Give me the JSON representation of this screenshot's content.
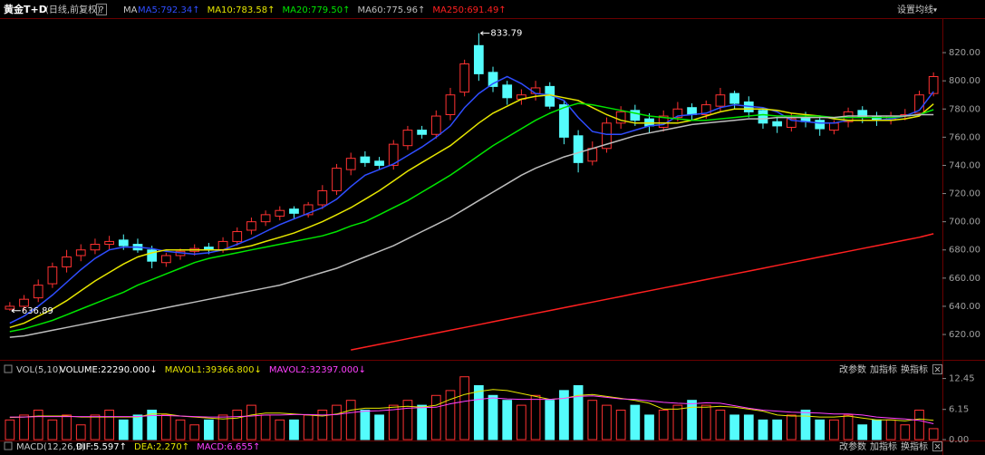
{
  "toolbar": {
    "help": "?",
    "ma_settings": "设置均线"
  },
  "panel_controls": [
    "改参数",
    "加指标",
    "换指标"
  ],
  "chart_data": [
    {
      "type": "candlestick",
      "title": "黄金T+D",
      "subtitle": "(日线,前复权)",
      "indicator_label": "MA",
      "up_color": "#ff3232",
      "down_color": "#54fcfc",
      "open": [
        638,
        640,
        646,
        656,
        668,
        676,
        680,
        684,
        687,
        684,
        680,
        671,
        676,
        679,
        682,
        680,
        686,
        694,
        700,
        704,
        709,
        705,
        712,
        722,
        737,
        746,
        743,
        740,
        754,
        765,
        762,
        776,
        792,
        825,
        806,
        797,
        787,
        791,
        796,
        783,
        761,
        743,
        752,
        770,
        779,
        773,
        767,
        774,
        781,
        776,
        782,
        791,
        785,
        779,
        771,
        767,
        774,
        772,
        765,
        771,
        779,
        775,
        772,
        775,
        777,
        791
      ],
      "high": [
        643,
        648,
        659,
        671,
        680,
        684,
        688,
        690,
        691,
        688,
        683,
        678,
        681,
        684,
        685,
        689,
        696,
        703,
        708,
        711,
        711,
        714,
        726,
        741,
        749,
        750,
        746,
        758,
        768,
        768,
        779,
        795,
        815,
        833.79,
        810,
        800,
        794,
        800,
        799,
        786,
        765,
        757,
        774,
        782,
        783,
        777,
        779,
        785,
        784,
        786,
        795,
        793,
        789,
        781,
        774,
        777,
        778,
        775,
        772,
        781,
        782,
        778,
        778,
        780,
        793,
        806
      ],
      "low": [
        636.89,
        637,
        643,
        653,
        664,
        672,
        677,
        680,
        680,
        678,
        667,
        668,
        673,
        676,
        677,
        678,
        683,
        691,
        697,
        701,
        702,
        703,
        709,
        719,
        733,
        739,
        737,
        737,
        751,
        759,
        759,
        772,
        789,
        800,
        792,
        783,
        783,
        786,
        780,
        755,
        735,
        740,
        749,
        766,
        768,
        763,
        764,
        771,
        772,
        773,
        778,
        780,
        774,
        766,
        763,
        764,
        767,
        761,
        762,
        767,
        770,
        768,
        769,
        772,
        775,
        789
      ],
      "close": [
        640,
        645,
        655,
        668,
        675,
        680,
        684,
        686,
        683,
        680,
        672,
        676,
        679,
        681,
        680,
        686,
        693,
        700,
        705,
        708,
        706,
        712,
        722,
        738,
        745,
        742,
        740,
        755,
        765,
        762,
        775,
        790,
        812,
        805,
        796,
        788,
        790,
        795,
        782,
        760,
        742,
        752,
        770,
        778,
        772,
        768,
        775,
        780,
        776,
        783,
        790,
        784,
        778,
        770,
        768,
        773,
        771,
        766,
        770,
        778,
        774,
        772,
        775,
        776,
        790,
        803
      ],
      "series": [
        {
          "name": "MA5:792.34↑",
          "color": "#2f4dff",
          "values": [
            628,
            633,
            640,
            648,
            657,
            666,
            674,
            680,
            682,
            682,
            681,
            679,
            678,
            677,
            678,
            680,
            684,
            688,
            693,
            698,
            702,
            706,
            710,
            716,
            725,
            733,
            737,
            741,
            747,
            753,
            760,
            768,
            781,
            791,
            798,
            803,
            798,
            791,
            790,
            786,
            774,
            764,
            762,
            762,
            765,
            768,
            769,
            775,
            776,
            777,
            781,
            783,
            782,
            781,
            778,
            772,
            771,
            770,
            770,
            772,
            772,
            772,
            773,
            775,
            779,
            792.34
          ]
        },
        {
          "name": "MA10:783.58↑",
          "color": "#e6e600",
          "values": [
            625,
            628,
            633,
            638,
            644,
            651,
            658,
            664,
            670,
            675,
            678,
            680,
            680,
            680,
            680,
            680,
            681,
            683,
            686,
            689,
            692,
            696,
            700,
            705,
            710,
            716,
            722,
            729,
            736,
            742,
            748,
            754,
            762,
            770,
            777,
            782,
            787,
            789,
            790,
            788,
            786,
            781,
            776,
            772,
            770,
            770,
            770,
            770,
            772,
            775,
            778,
            780,
            780,
            780,
            779,
            777,
            776,
            775,
            773,
            772,
            772,
            772,
            772,
            773,
            775,
            783.58
          ]
        },
        {
          "name": "MA20:779.50↑",
          "color": "#00e600",
          "values": [
            622,
            624,
            627,
            630,
            634,
            638,
            642,
            646,
            650,
            655,
            659,
            663,
            667,
            671,
            674,
            676,
            678,
            680,
            682,
            684,
            686,
            688,
            690,
            693,
            697,
            700,
            705,
            710,
            715,
            721,
            727,
            733,
            740,
            747,
            754,
            760,
            766,
            772,
            777,
            781,
            784,
            783,
            781,
            779,
            777,
            775,
            774,
            773,
            772,
            772,
            773,
            774,
            775,
            776,
            775,
            775,
            775,
            775,
            774,
            774,
            774,
            774,
            774,
            775,
            776,
            779.5
          ]
        },
        {
          "name": "MA60:775.96↑",
          "color": "#bdbdbd",
          "values": [
            618,
            619,
            621,
            623,
            625,
            627,
            629,
            631,
            633,
            635,
            637,
            639,
            641,
            643,
            645,
            647,
            649,
            651,
            653,
            655,
            658,
            661,
            664,
            667,
            671,
            675,
            679,
            683,
            688,
            693,
            698,
            703,
            709,
            715,
            721,
            727,
            733,
            738,
            742,
            746,
            749,
            752,
            755,
            758,
            761,
            763,
            765,
            767,
            769,
            770,
            771,
            772,
            773,
            773,
            774,
            774,
            774,
            774,
            774,
            775,
            775,
            775,
            775,
            775,
            776,
            775.96
          ]
        },
        {
          "name": "MA250:691.49↑",
          "color": "#ff2020",
          "values": [
            null,
            null,
            null,
            null,
            null,
            null,
            null,
            null,
            null,
            null,
            null,
            null,
            null,
            null,
            null,
            null,
            null,
            null,
            null,
            null,
            null,
            null,
            null,
            null,
            609,
            611,
            613,
            615,
            617,
            619,
            621,
            623,
            625,
            627,
            629,
            631,
            633,
            635,
            637,
            639,
            641,
            643,
            645,
            647,
            649,
            651,
            653,
            655,
            657,
            659,
            661,
            663,
            665,
            667,
            669,
            671,
            673,
            675,
            677,
            679,
            681,
            683,
            685,
            687,
            689,
            691.49
          ]
        }
      ],
      "annotations": [
        "833.79",
        "636.89"
      ],
      "ylim": [
        603.3,
        843.2
      ],
      "yticks": [
        {
          "value": 620,
          "label": "620.00"
        },
        {
          "value": 640,
          "label": "640.00"
        },
        {
          "value": 660,
          "label": "660.00"
        },
        {
          "value": 680,
          "label": "680.00"
        },
        {
          "value": 700,
          "label": "700.00"
        },
        {
          "value": 720,
          "label": "720.00"
        },
        {
          "value": 740,
          "label": "740.00"
        },
        {
          "value": 760,
          "label": "760.00"
        },
        {
          "value": 780,
          "label": "780.00"
        },
        {
          "value": 800,
          "label": "800.00"
        },
        {
          "value": 820,
          "label": "820.00"
        }
      ]
    },
    {
      "type": "volume",
      "title": "VOL(5,10)",
      "name": "VOLUME:22290.000↓",
      "name_color": "#ffffff",
      "values": [
        4,
        5,
        6,
        4,
        5,
        3,
        5,
        6,
        4,
        5,
        6,
        5,
        4,
        3,
        4,
        5,
        6,
        7,
        5,
        4,
        4,
        5,
        6,
        7,
        8,
        6,
        5,
        7,
        8,
        7,
        9,
        10,
        12.8,
        11,
        9,
        8,
        7,
        9,
        8,
        10,
        11,
        8,
        7,
        6,
        7,
        5,
        6,
        7,
        8,
        7,
        6,
        5,
        5,
        4,
        4,
        5,
        6,
        4,
        4,
        5,
        3,
        4,
        4,
        3,
        6,
        2.23
      ],
      "series": [
        {
          "name": "MAVOL1:39366.800↓",
          "color": "#e6e600",
          "values": [
            4.5,
            4.6,
            4.8,
            4.8,
            4.8,
            4.6,
            4.6,
            4.6,
            4.6,
            4.6,
            5.2,
            5.2,
            4.8,
            4.6,
            4.4,
            4.2,
            4.4,
            5,
            5.4,
            5.4,
            5.2,
            5,
            4.8,
            5.2,
            6,
            6.4,
            6.4,
            6.6,
            6.8,
            6.6,
            7,
            8.2,
            9.2,
            9.8,
            10.2,
            10,
            9.4,
            8.8,
            8.2,
            8.4,
            9,
            9.2,
            8.8,
            8.4,
            8,
            7.4,
            6.2,
            6.2,
            6.6,
            6.6,
            6.8,
            6.6,
            6.2,
            5.8,
            5,
            4.8,
            4.8,
            4.6,
            4.6,
            4.8,
            4.4,
            4,
            4,
            3.8,
            4.2,
            3.94
          ]
        },
        {
          "name": "MAVOL2:32397.000↓",
          "color": "#ff40ff",
          "values": [
            4.6,
            4.6,
            4.7,
            4.7,
            4.7,
            4.7,
            4.7,
            4.7,
            4.7,
            4.7,
            4.9,
            4.9,
            4.8,
            4.7,
            4.6,
            4.6,
            4.7,
            4.8,
            5,
            5,
            5.1,
            5.1,
            5,
            5.1,
            5.5,
            5.8,
            5.9,
            6.1,
            6.4,
            6.5,
            6.6,
            7.3,
            7.8,
            8.2,
            8.5,
            8.3,
            8.2,
            8.2,
            8.2,
            8.4,
            8.8,
            8.9,
            8.6,
            8.3,
            8.2,
            7.9,
            7.6,
            7.4,
            7.3,
            7.5,
            7.4,
            6.9,
            6.4,
            6,
            5.8,
            5.6,
            5.5,
            5.4,
            5.2,
            5.2,
            5,
            4.6,
            4.4,
            4.2,
            3.9,
            3.24
          ]
        }
      ],
      "ylim": [
        0,
        13.3
      ],
      "yticks": [
        {
          "value": 0,
          "label": "0.00"
        },
        {
          "value": 6.15,
          "label": "6.15"
        },
        {
          "value": 12.45,
          "label": "12.45"
        }
      ]
    },
    {
      "type": "macd",
      "title": "MACD(12,26,9)",
      "legend": [
        {
          "name": "DIF:5.597↑",
          "color": "#ffffff"
        },
        {
          "name": "DEA:2.270↑",
          "color": "#e6e600"
        },
        {
          "name": "MACD:6.655↑",
          "color": "#ff40ff"
        }
      ]
    }
  ]
}
